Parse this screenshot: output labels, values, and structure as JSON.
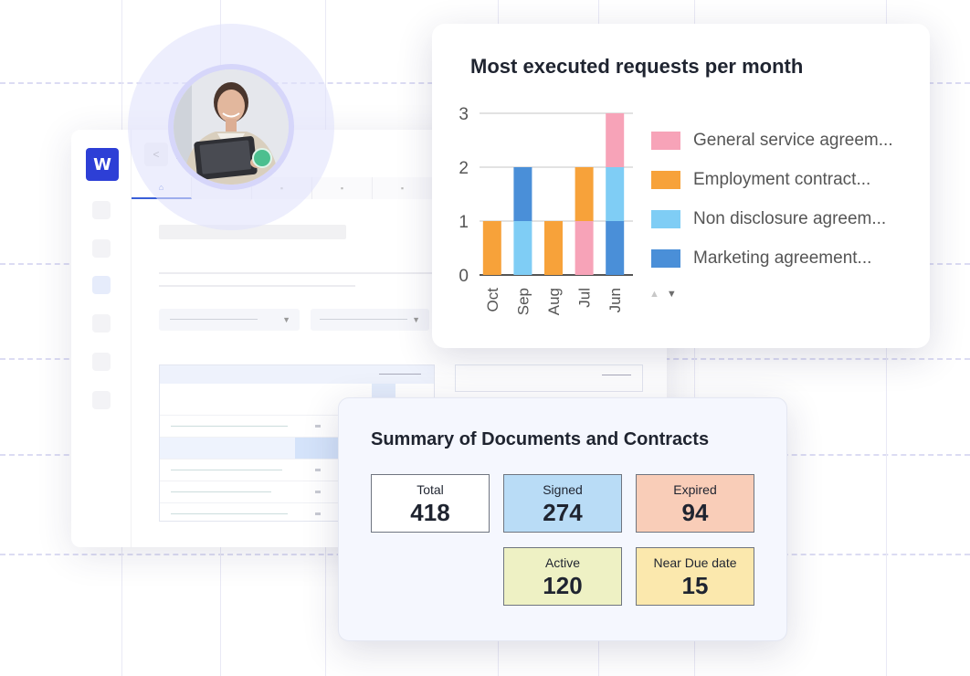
{
  "app": {
    "logo_letter": "W",
    "nav_back_label": "<",
    "tab_icons": [
      "⌂",
      "▪",
      "▪",
      "▪",
      "▪"
    ]
  },
  "chart_card": {
    "title": "Most executed requests per month",
    "legend_nav": {
      "up": "▲",
      "down": "▼"
    }
  },
  "chart_data": {
    "type": "bar",
    "stacked": true,
    "title": "Most executed requests per month",
    "categories": [
      "Oct",
      "Sep",
      "Aug",
      "Jul",
      "Jun"
    ],
    "ylim": [
      0,
      3
    ],
    "yticks": [
      0,
      1,
      2,
      3
    ],
    "grid": true,
    "legend_position": "right",
    "series": [
      {
        "name": "Marketing agreement...",
        "color": "#4a8fd8",
        "values": [
          0,
          1,
          0,
          0,
          1
        ]
      },
      {
        "name": "Non disclosure agreem...",
        "color": "#7fcdf5",
        "values": [
          0,
          1,
          0,
          0,
          1
        ]
      },
      {
        "name": "Employment contract...",
        "color": "#f7a23a",
        "values": [
          1,
          0,
          1,
          1,
          0
        ]
      },
      {
        "name": "General service agreem...",
        "color": "#f7a3b8",
        "values": [
          0,
          0,
          0,
          1,
          1
        ]
      }
    ],
    "bar_order": [
      [
        "Employment contract..."
      ],
      [
        "Non disclosure agreem...",
        "Marketing agreement..."
      ],
      [
        "Employment contract..."
      ],
      [
        "General service agreem...",
        "Employment contract..."
      ],
      [
        "Marketing agreement...",
        "Non disclosure agreem...",
        "General service agreem..."
      ]
    ]
  },
  "summary": {
    "title": "Summary of Documents and Contracts",
    "stats": [
      {
        "label": "Total",
        "value": "418",
        "color": "#ffffff"
      },
      {
        "label": "Signed",
        "value": "274",
        "color": "#b9dcf6"
      },
      {
        "label": "Expired",
        "value": "94",
        "color": "#f9cdb8"
      },
      {
        "label": "Active",
        "value": "120",
        "color": "#eef1c4"
      },
      {
        "label": "Near Due date",
        "value": "15",
        "color": "#fbe8ad"
      }
    ]
  }
}
